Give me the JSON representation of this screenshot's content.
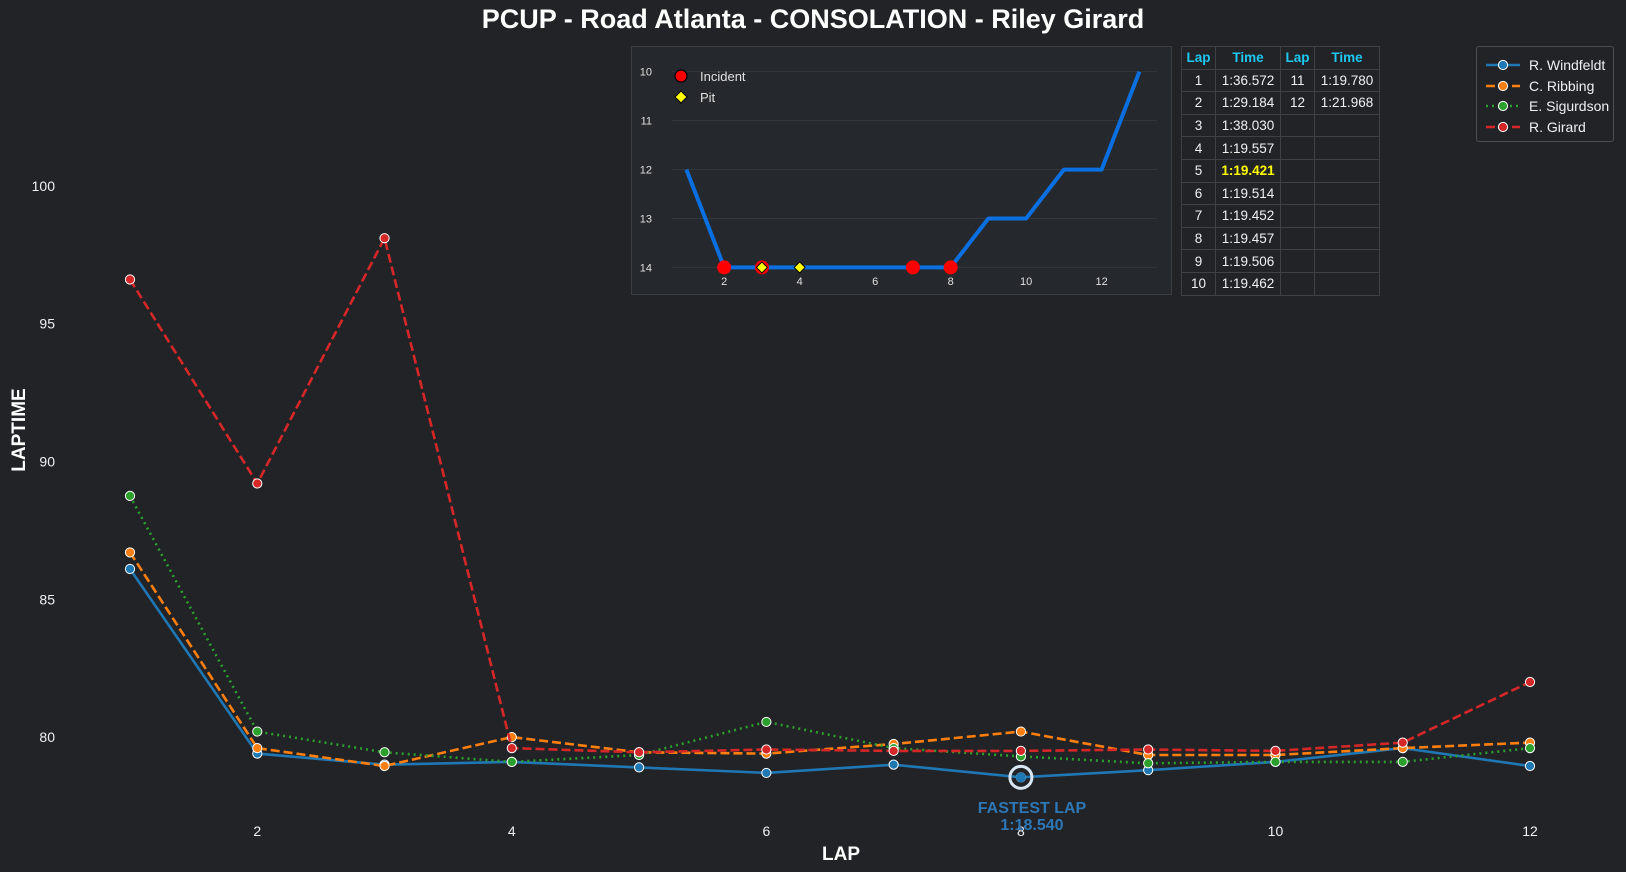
{
  "title": "PCUP - Road Atlanta - CONSOLATION - Riley Girard",
  "chart_data": [
    {
      "type": "line",
      "title": "PCUP - Road Atlanta - CONSOLATION - Riley Girard",
      "xlabel": "LAP",
      "ylabel": "LAPTIME",
      "xlim": [
        0.45,
        12.55
      ],
      "ylim": [
        77.5,
        105
      ],
      "x_ticks": [
        2,
        4,
        6,
        8,
        10,
        12
      ],
      "y_ticks": [
        80,
        85,
        90,
        95,
        100
      ],
      "x": [
        1,
        2,
        3,
        4,
        5,
        6,
        7,
        8,
        9,
        10,
        11,
        12
      ],
      "legend_position": "top-right",
      "series": [
        {
          "name": "R. Windfeldt",
          "color": "#1f77b4",
          "style": "solid",
          "values": [
            86.1,
            79.4,
            79.0,
            79.1,
            78.9,
            78.7,
            79.0,
            78.54,
            78.8,
            79.1,
            79.6,
            78.95
          ]
        },
        {
          "name": "C. Ribbing",
          "color": "#ff7f0e",
          "style": "dashed",
          "values": [
            86.7,
            79.6,
            78.95,
            80.0,
            79.45,
            79.4,
            79.75,
            80.2,
            79.35,
            79.35,
            79.6,
            79.8
          ]
        },
        {
          "name": "E. Sigurdson",
          "color": "#2ca02c",
          "style": "dotted",
          "values": [
            88.75,
            80.2,
            79.45,
            79.1,
            79.35,
            80.55,
            79.6,
            79.3,
            79.05,
            79.1,
            79.1,
            79.6
          ]
        },
        {
          "name": "R. Girard",
          "color": "#d62728",
          "style": "dashed",
          "values": [
            96.6,
            89.2,
            98.1,
            79.6,
            79.45,
            79.55,
            79.5,
            79.5,
            79.55,
            79.5,
            79.8,
            82.0
          ]
        }
      ],
      "annotation": {
        "label": "FASTEST LAP",
        "value": "1:18.540",
        "lap": 8,
        "laptime": 78.54
      }
    },
    {
      "type": "line",
      "title": "Position",
      "x": [
        1,
        2,
        3,
        4,
        5,
        6,
        7,
        8,
        9,
        10,
        11,
        12,
        13
      ],
      "values": [
        12,
        14,
        14,
        14,
        14,
        14,
        14,
        14,
        13,
        13,
        12,
        12,
        10
      ],
      "xlim": [
        0.3,
        13.6
      ],
      "ylim": [
        14.4,
        9.7
      ],
      "x_ticks": [
        2,
        4,
        6,
        8,
        10,
        12
      ],
      "y_ticks": [
        10,
        11,
        12,
        13,
        14
      ],
      "incidents": [
        {
          "lap": 2,
          "pos": 14
        },
        {
          "lap": 3,
          "pos": 14
        },
        {
          "lap": 7,
          "pos": 14
        },
        {
          "lap": 8,
          "pos": 14
        }
      ],
      "pits": [
        {
          "lap": 3,
          "pos": 14
        },
        {
          "lap": 4,
          "pos": 14
        }
      ],
      "legend": [
        "Incident",
        "Pit"
      ],
      "colors": {
        "line": "#0a6fe0",
        "incident": "#ff0000",
        "pit": "#ffff00"
      }
    }
  ],
  "lap_table": {
    "headers": [
      "Lap",
      "Time",
      "Lap",
      "Time"
    ],
    "fastest_lap": "5",
    "rows": [
      [
        "1",
        "1:36.572",
        "11",
        "1:19.780"
      ],
      [
        "2",
        "1:29.184",
        "12",
        "1:21.968"
      ],
      [
        "3",
        "1:38.030",
        "",
        ""
      ],
      [
        "4",
        "1:19.557",
        "",
        ""
      ],
      [
        "5",
        "1:19.421",
        "",
        ""
      ],
      [
        "6",
        "1:19.514",
        "",
        ""
      ],
      [
        "7",
        "1:19.452",
        "",
        ""
      ],
      [
        "8",
        "1:19.457",
        "",
        ""
      ],
      [
        "9",
        "1:19.506",
        "",
        ""
      ],
      [
        "10",
        "1:19.462",
        "",
        ""
      ]
    ]
  },
  "colors": {
    "background": "#212327",
    "table_header": "#1ec8f0",
    "fastest_time": "#ffff00"
  }
}
